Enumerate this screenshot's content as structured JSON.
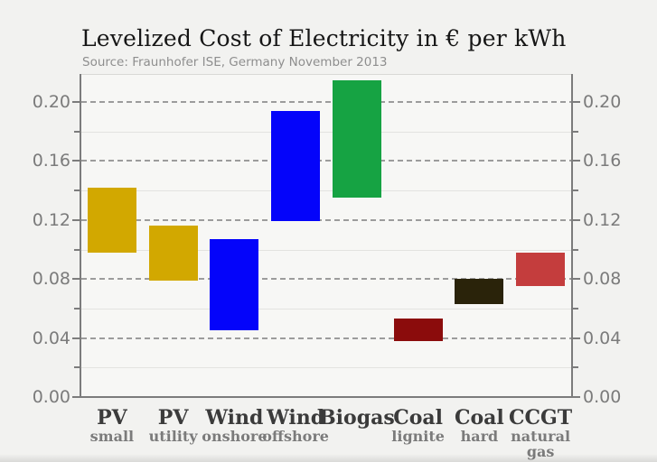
{
  "page": {
    "background": "#f2f2f0"
  },
  "chart_data": {
    "type": "bar",
    "variant": "floating-range-columns",
    "title": "Levelized Cost of Electricity in € per kWh",
    "source": "Source: Fraunhofer ISE, Germany November 2013",
    "unit": "€ per kWh",
    "categories": [
      "PV",
      "PV",
      "Wind",
      "Wind",
      "Biogas",
      "Coal",
      "Coal",
      "CCGT"
    ],
    "subcategories": [
      "small",
      "utility",
      "onshore",
      "offshore",
      "",
      "lignite",
      "hard",
      "natural gas"
    ],
    "series": [
      {
        "name": "PV small",
        "range": [
          0.098,
          0.142
        ],
        "color": "#d2a800"
      },
      {
        "name": "PV utility",
        "range": [
          0.079,
          0.116
        ],
        "color": "#d2a800"
      },
      {
        "name": "Wind onshore",
        "range": [
          0.045,
          0.107
        ],
        "color": "#0404fa"
      },
      {
        "name": "Wind offshore",
        "range": [
          0.119,
          0.194
        ],
        "color": "#0404fa"
      },
      {
        "name": "Biogas",
        "range": [
          0.135,
          0.215
        ],
        "color": "#16a343"
      },
      {
        "name": "Coal lignite",
        "range": [
          0.038,
          0.053
        ],
        "color": "#8b0c0c"
      },
      {
        "name": "Coal hard",
        "range": [
          0.063,
          0.08
        ],
        "color": "#2a230a"
      },
      {
        "name": "CCGT natural gas",
        "range": [
          0.075,
          0.098
        ],
        "color": "#c43d3d"
      }
    ],
    "ylim": [
      0,
      0.219
    ],
    "yticks_major": [
      0,
      0.04,
      0.08,
      0.12,
      0.16,
      0.2
    ],
    "ytick_labels": [
      "0.00",
      "0.04",
      "0.08",
      "0.12",
      "0.16",
      "0.20"
    ],
    "yticks_minor": [
      0.02,
      0.06,
      0.1,
      0.14,
      0.18
    ],
    "grid": {
      "major": "dashed",
      "minor": "solid-faint"
    },
    "legend": "none",
    "y_axis_sides": [
      "left",
      "right"
    ]
  }
}
